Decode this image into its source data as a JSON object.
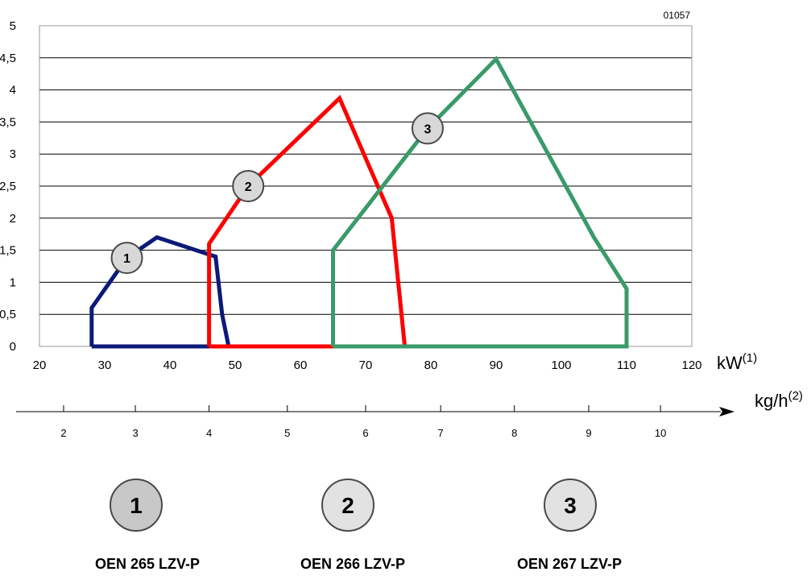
{
  "chart_data": {
    "type": "line",
    "code": "01057",
    "x_unit": "kW",
    "x_unit_sup": "(1)",
    "secondary_unit": "kg/h",
    "secondary_unit_sup": "(2)",
    "xlim": [
      20,
      120
    ],
    "ylim": [
      0,
      5
    ],
    "x_ticks": [
      20,
      30,
      40,
      50,
      60,
      70,
      80,
      90,
      100,
      110,
      120
    ],
    "y_ticks": [
      {
        "value": 0,
        "label": "0"
      },
      {
        "value": 0.5,
        "label": "0,5"
      },
      {
        "value": 1,
        "label": "1"
      },
      {
        "value": 1.5,
        "label": "1,5"
      },
      {
        "value": 2,
        "label": "2"
      },
      {
        "value": 2.5,
        "label": "2,5"
      },
      {
        "value": 3,
        "label": "3"
      },
      {
        "value": 3.5,
        "label": "3,5"
      },
      {
        "value": 4,
        "label": "4"
      },
      {
        "value": 4.5,
        "label": "4,5"
      },
      {
        "value": 5,
        "label": "5"
      }
    ],
    "horizontal_grid": true,
    "kg_ticks": [
      {
        "kg": "2",
        "kw": 23.7
      },
      {
        "kg": "3",
        "kw": 34.7
      },
      {
        "kg": "4",
        "kw": 46.0
      },
      {
        "kg": "5",
        "kw": 58.0
      },
      {
        "kg": "6",
        "kw": 70.0
      },
      {
        "kg": "7",
        "kw": 81.5
      },
      {
        "kg": "8",
        "kw": 92.8
      },
      {
        "kg": "9",
        "kw": 104.2
      },
      {
        "kg": "10",
        "kw": 115.2
      }
    ],
    "series": [
      {
        "marker": "1",
        "color": "#0b1a78",
        "points": [
          [
            28,
            0
          ],
          [
            28,
            0.6
          ],
          [
            33.4,
            1.38
          ],
          [
            38,
            1.7
          ],
          [
            47,
            1.4
          ],
          [
            48,
            0.5
          ],
          [
            49,
            0
          ],
          [
            28,
            0
          ]
        ],
        "label_at": [
          33.4,
          1.38
        ]
      },
      {
        "marker": "2",
        "color": "#ff0000",
        "points": [
          [
            46,
            0
          ],
          [
            46,
            1.6
          ],
          [
            52,
            2.5
          ],
          [
            66,
            3.87
          ],
          [
            74,
            2
          ],
          [
            76,
            0
          ],
          [
            46,
            0
          ]
        ],
        "label_at": [
          52,
          2.5
        ]
      },
      {
        "marker": "3",
        "color": "#3a9a6a",
        "points": [
          [
            65,
            0
          ],
          [
            65,
            1.5
          ],
          [
            79.5,
            3.4
          ],
          [
            90,
            4.48
          ],
          [
            105,
            1.7
          ],
          [
            110,
            0.9
          ],
          [
            110,
            0
          ],
          [
            65,
            0
          ]
        ],
        "label_at": [
          79.5,
          3.4
        ]
      }
    ]
  },
  "legend": [
    {
      "marker": "1",
      "name": "OEN 265 LZV-P"
    },
    {
      "marker": "2",
      "name": "OEN 266 LZV-P"
    },
    {
      "marker": "3",
      "name": "OEN 267 LZV-P"
    }
  ]
}
